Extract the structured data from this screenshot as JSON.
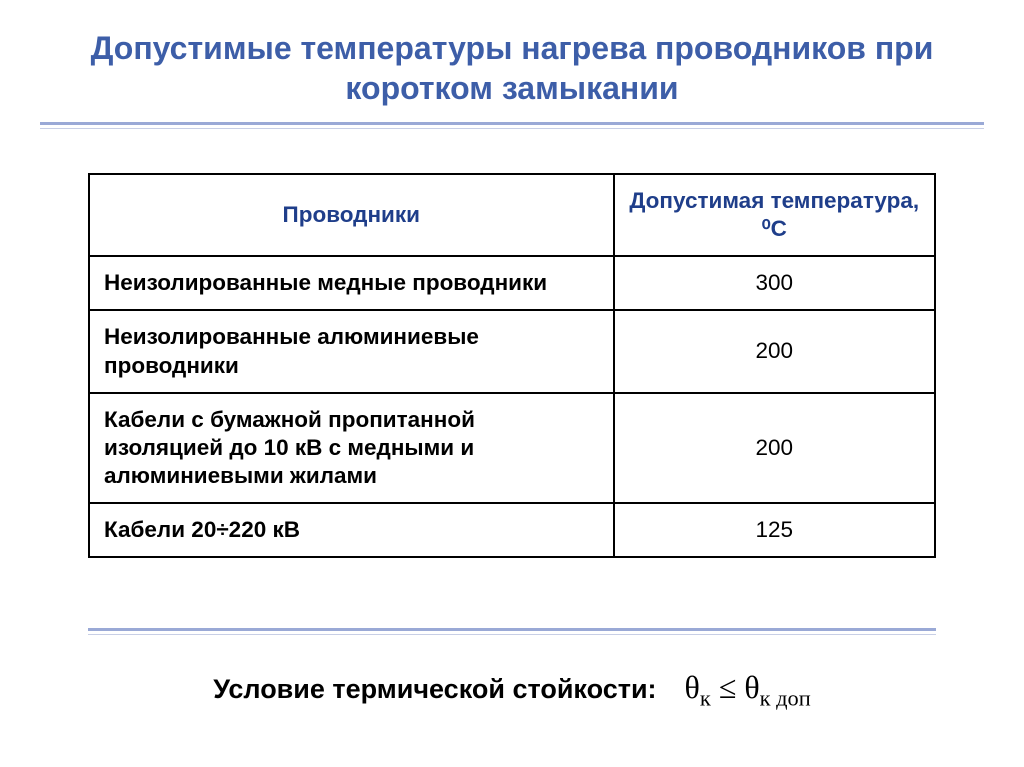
{
  "colors": {
    "title": "#3d5ea8",
    "rule_top": "#9aa9d6",
    "rule_thin": "#c8cfe6",
    "header_text": "#1f3e8a",
    "border": "#000000",
    "body_text": "#000000",
    "background": "#ffffff"
  },
  "title_fontsize": 32,
  "title": "Допустимые температуры нагрева проводников при коротком замыкании",
  "table": {
    "header_col1": "Проводники",
    "header_col2": "Допустимая температура, ⁰С",
    "col_widths": [
      "62%",
      "38%"
    ],
    "cell_fontsize": 22.5,
    "rows": [
      {
        "desc": "Неизолированные медные проводники",
        "val": "300"
      },
      {
        "desc": "Неизолированные алюминиевые проводники",
        "val": "200"
      },
      {
        "desc": "Кабели с бумажной пропитанной изоляцией до 10 кВ с медными и алюминиевыми жилами",
        "val": "200"
      },
      {
        "desc": "Кабели 20÷220 кВ",
        "val": "125"
      }
    ]
  },
  "footer": {
    "label": "Условие термической стойкости:",
    "label_fontsize": 27,
    "formula_fontsize": 32,
    "theta": "θ",
    "sub1": "к",
    "op": "≤",
    "sub2": "к доп"
  }
}
